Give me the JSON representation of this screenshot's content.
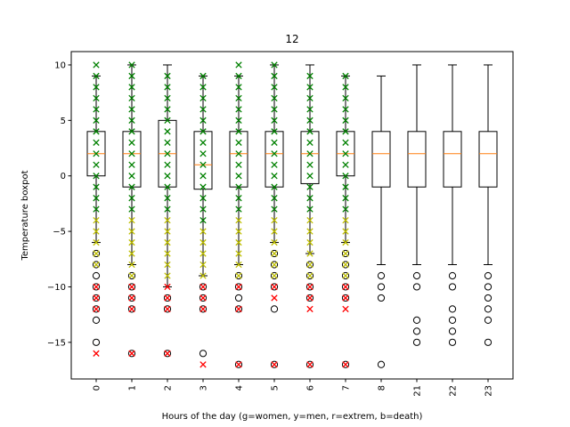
{
  "chart_data": {
    "type": "box",
    "title": "12",
    "xlabel": "Hours of the day (g=women, y=men, r=extrem, b=death)",
    "ylabel": "Temperature boxpot",
    "ylim": [
      -18.3,
      11.2
    ],
    "yticks": [
      10,
      5,
      0,
      -5,
      -10,
      -15
    ],
    "categories": [
      "0",
      "1",
      "2",
      "3",
      "4",
      "5",
      "6",
      "7",
      "8",
      "21",
      "22",
      "23"
    ],
    "boxes": [
      {
        "q1": 0,
        "median": 2,
        "q3": 4,
        "whisker_low": -6,
        "whisker_high": 9,
        "outliers": [
          -7,
          -8,
          -9,
          -10,
          -11,
          -12,
          -13,
          -15
        ]
      },
      {
        "q1": -1,
        "median": 2,
        "q3": 4,
        "whisker_low": -8,
        "whisker_high": 10,
        "outliers": [
          -9,
          -10,
          -11,
          -12,
          -16
        ]
      },
      {
        "q1": -1,
        "median": 2,
        "q3": 5,
        "whisker_low": -10,
        "whisker_high": 10,
        "outliers": [
          -11,
          -12,
          -16
        ]
      },
      {
        "q1": -1.2,
        "median": 1,
        "q3": 4,
        "whisker_low": -9,
        "whisker_high": 9,
        "outliers": [
          -10,
          -11,
          -12,
          -16
        ]
      },
      {
        "q1": -1,
        "median": 2,
        "q3": 4,
        "whisker_low": -8,
        "whisker_high": 9,
        "outliers": [
          -9,
          -10,
          -11,
          -12,
          -17
        ]
      },
      {
        "q1": -1,
        "median": 2,
        "q3": 4,
        "whisker_low": -6,
        "whisker_high": 10,
        "outliers": [
          -7,
          -8,
          -9,
          -10,
          -12,
          -17
        ]
      },
      {
        "q1": -0.7,
        "median": 2,
        "q3": 4,
        "whisker_low": -7,
        "whisker_high": 10,
        "outliers": [
          -8,
          -9,
          -10,
          -11,
          -17
        ]
      },
      {
        "q1": 0,
        "median": 2,
        "q3": 4,
        "whisker_low": -6,
        "whisker_high": 9,
        "outliers": [
          -7,
          -8,
          -9,
          -10,
          -11,
          -17
        ]
      },
      {
        "q1": -1,
        "median": 2,
        "q3": 4,
        "whisker_low": -8,
        "whisker_high": 9,
        "outliers": [
          -9,
          -10,
          -11,
          -17
        ]
      },
      {
        "q1": -1,
        "median": 2,
        "q3": 4,
        "whisker_low": -8,
        "whisker_high": 10,
        "outliers": [
          -9,
          -10,
          -13,
          -14,
          -15
        ]
      },
      {
        "q1": -1,
        "median": 2,
        "q3": 4,
        "whisker_low": -8,
        "whisker_high": 10,
        "outliers": [
          -9,
          -10,
          -12,
          -13,
          -14,
          -15
        ]
      },
      {
        "q1": -1,
        "median": 2,
        "q3": 4,
        "whisker_low": -8,
        "whisker_high": 10,
        "outliers": [
          -9,
          -10,
          -11,
          -12,
          -13,
          -15
        ]
      }
    ],
    "markers": [
      {
        "category": "0",
        "color": "#008000",
        "values": [
          10,
          9,
          8,
          7,
          6,
          5,
          4,
          3,
          2,
          1,
          0,
          -1,
          -2,
          -3
        ]
      },
      {
        "category": "0",
        "color": "#bfbf00",
        "values": [
          -4,
          -5,
          -6,
          -7,
          -8
        ]
      },
      {
        "category": "0",
        "color": "#ff0000",
        "values": [
          -10,
          -11,
          -12,
          -16
        ]
      },
      {
        "category": "1",
        "color": "#008000",
        "values": [
          10,
          9,
          8,
          7,
          6,
          5,
          4,
          3,
          2,
          1,
          0,
          -1,
          -2,
          -3
        ]
      },
      {
        "category": "1",
        "color": "#bfbf00",
        "values": [
          -4,
          -5,
          -6,
          -7,
          -8,
          -9
        ]
      },
      {
        "category": "1",
        "color": "#ff0000",
        "values": [
          -10,
          -11,
          -12,
          -16
        ]
      },
      {
        "category": "2",
        "color": "#008000",
        "values": [
          9,
          8,
          7,
          6,
          5,
          4,
          3,
          2,
          1,
          0,
          -1,
          -2,
          -3
        ]
      },
      {
        "category": "2",
        "color": "#bfbf00",
        "values": [
          -4,
          -5,
          -6,
          -7,
          -8,
          -9
        ]
      },
      {
        "category": "2",
        "color": "#ff0000",
        "values": [
          -10,
          -11,
          -12,
          -16
        ]
      },
      {
        "category": "3",
        "color": "#008000",
        "values": [
          9,
          8,
          7,
          6,
          5,
          4,
          3,
          2,
          1,
          0,
          -1,
          -2,
          -3,
          -4
        ]
      },
      {
        "category": "3",
        "color": "#bfbf00",
        "values": [
          -5,
          -6,
          -7,
          -8,
          -9
        ]
      },
      {
        "category": "3",
        "color": "#ff0000",
        "values": [
          -10,
          -11,
          -12,
          -17
        ]
      },
      {
        "category": "4",
        "color": "#008000",
        "values": [
          10,
          9,
          8,
          7,
          6,
          5,
          4,
          3,
          2,
          1,
          0,
          -1,
          -2,
          -3
        ]
      },
      {
        "category": "4",
        "color": "#bfbf00",
        "values": [
          -4,
          -5,
          -6,
          -7,
          -8,
          -9
        ]
      },
      {
        "category": "4",
        "color": "#ff0000",
        "values": [
          -10,
          -12,
          -17
        ]
      },
      {
        "category": "5",
        "color": "#008000",
        "values": [
          10,
          9,
          8,
          7,
          6,
          5,
          4,
          3,
          2,
          1,
          0,
          -1,
          -2,
          -3
        ]
      },
      {
        "category": "5",
        "color": "#bfbf00",
        "values": [
          -4,
          -5,
          -6,
          -7,
          -8,
          -9
        ]
      },
      {
        "category": "5",
        "color": "#ff0000",
        "values": [
          -10,
          -11,
          -17
        ]
      },
      {
        "category": "6",
        "color": "#008000",
        "values": [
          9,
          8,
          7,
          6,
          5,
          4,
          3,
          2,
          1,
          0,
          -1,
          -2,
          -3
        ]
      },
      {
        "category": "6",
        "color": "#bfbf00",
        "values": [
          -4,
          -5,
          -6,
          -7,
          -8,
          -9
        ]
      },
      {
        "category": "6",
        "color": "#ff0000",
        "values": [
          -10,
          -11,
          -12,
          -17
        ]
      },
      {
        "category": "7",
        "color": "#008000",
        "values": [
          9,
          8,
          7,
          6,
          5,
          4,
          3,
          2,
          1,
          0,
          -1,
          -2,
          -3
        ]
      },
      {
        "category": "7",
        "color": "#bfbf00",
        "values": [
          -4,
          -5,
          -6,
          -7,
          -8,
          -9
        ]
      },
      {
        "category": "7",
        "color": "#ff0000",
        "values": [
          -10,
          -11,
          -12,
          -17
        ]
      }
    ],
    "colors": {
      "box": "#000000",
      "median": "#ff7f0e",
      "women": "#008000",
      "men": "#bfbf00",
      "extrem": "#ff0000"
    }
  }
}
